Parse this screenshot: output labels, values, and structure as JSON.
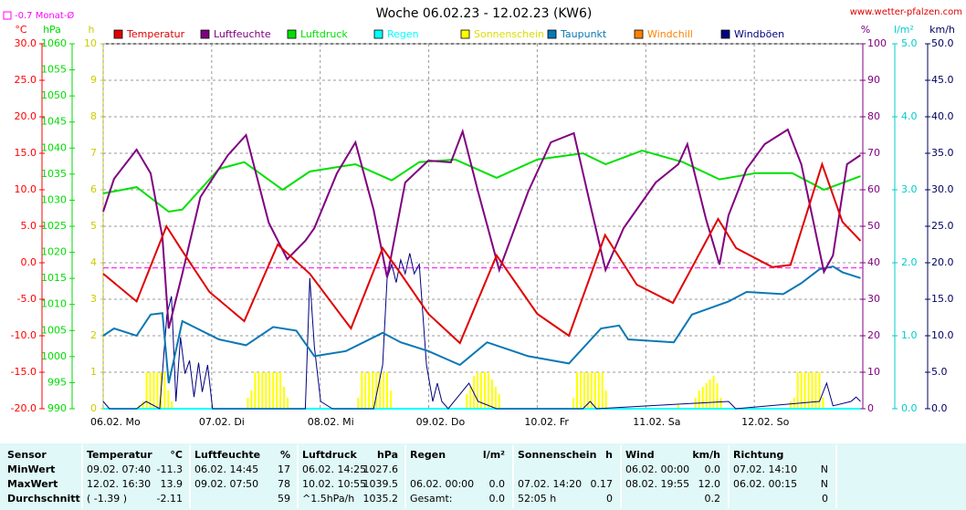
{
  "chart_data": {
    "type": "line",
    "title": "Woche 06.02.23 - 12.02.23 (KW6)",
    "source": "www.wetter-pfalzen.com",
    "reference": {
      "label": "-0.7 Monat-Ø",
      "value": -0.7,
      "color": "#ff00ff"
    },
    "xlim": [
      0,
      168
    ],
    "xticks": [
      {
        "value": 0,
        "label": "06.02. Mo"
      },
      {
        "value": 24,
        "label": "07.02. Di"
      },
      {
        "value": 48,
        "label": "08.02. Mi"
      },
      {
        "value": 72,
        "label": "09.02. Do"
      },
      {
        "value": 96,
        "label": "10.02. Fr"
      },
      {
        "value": 120,
        "label": "11.02. Sa"
      },
      {
        "value": 144,
        "label": "12.02. So"
      }
    ],
    "grid": true,
    "y_axes": [
      {
        "unit": "°C",
        "color": "#ff0000",
        "lim": [
          -20,
          30
        ],
        "ticks": [
          {
            "value": 30,
            "label": "30.0"
          },
          {
            "value": 25,
            "label": "25.0"
          },
          {
            "value": 20,
            "label": "20.0"
          },
          {
            "value": 15,
            "label": "15.0"
          },
          {
            "value": 10,
            "label": "10.0"
          },
          {
            "value": 5,
            "label": "5.0"
          },
          {
            "value": 0,
            "label": "0.0"
          },
          {
            "value": -5,
            "label": "-5.0"
          },
          {
            "value": -10,
            "label": "-10.0"
          },
          {
            "value": -15,
            "label": "-15.0"
          },
          {
            "value": -20,
            "label": "-20.0"
          }
        ]
      },
      {
        "unit": "hPa",
        "color": "#00dd00",
        "lim": [
          990,
          1060
        ],
        "ticks": [
          990,
          995,
          1000,
          1005,
          1010,
          1015,
          1020,
          1025,
          1030,
          1035,
          1040,
          1045,
          1050,
          1055,
          1060
        ]
      },
      {
        "unit": "h",
        "color": "#cccc00",
        "lim": [
          0,
          10
        ],
        "ticks": [
          0,
          1,
          2,
          3,
          4,
          5,
          6,
          7,
          8,
          9,
          10
        ]
      },
      {
        "unit": "%",
        "color": "#800080",
        "lim": [
          0,
          100
        ],
        "ticks": [
          0,
          10,
          20,
          30,
          40,
          50,
          60,
          70,
          80,
          90,
          100
        ]
      },
      {
        "unit": "l/m²",
        "color": "#00cccc",
        "lim": [
          0,
          5
        ],
        "ticks": [
          {
            "value": 0,
            "label": "0.0"
          },
          {
            "value": 1,
            "label": "1.0"
          },
          {
            "value": 2,
            "label": "2.0"
          },
          {
            "value": 3,
            "label": "3.0"
          },
          {
            "value": 4,
            "label": "4.0"
          },
          {
            "value": 5,
            "label": "5.0"
          }
        ]
      },
      {
        "unit": "km/h",
        "color": "#000060",
        "lim": [
          0,
          50
        ],
        "ticks": [
          {
            "value": 0,
            "label": "0.0"
          },
          {
            "value": 5,
            "label": "5.0"
          },
          {
            "value": 10,
            "label": "10.0"
          },
          {
            "value": 15,
            "label": "15.0"
          },
          {
            "value": 20,
            "label": "20.0"
          },
          {
            "value": 25,
            "label": "25.0"
          },
          {
            "value": 30,
            "label": "30.0"
          },
          {
            "value": 35,
            "label": "35.0"
          },
          {
            "value": 40,
            "label": "40.0"
          },
          {
            "value": 45,
            "label": "45.0"
          },
          {
            "value": 50,
            "label": "50.0"
          }
        ]
      }
    ],
    "series": [
      {
        "name": "Temperatur",
        "color": "#e00000",
        "kind": "line",
        "axis": 0,
        "x": [
          0,
          7.4,
          14,
          17.5,
          23.5,
          31.2,
          38.6,
          45.7,
          54.8,
          61.8,
          65.8,
          71.9,
          78.9,
          87,
          96,
          103,
          111,
          118,
          126,
          136,
          140,
          148,
          152,
          159,
          163.5,
          167.5
        ],
        "values": [
          -1.5,
          -5.3,
          5,
          1.6,
          -4,
          -8,
          2.5,
          -1.5,
          -9,
          2,
          -1.5,
          -7,
          -11,
          1,
          -7,
          -10,
          3.8,
          -3,
          -5.5,
          6,
          2,
          -0.6,
          -0.3,
          13.5,
          5.6,
          3
        ]
      },
      {
        "name": "Luftfeuchte",
        "color": "#800080",
        "kind": "line",
        "axis": 3,
        "x": [
          0,
          2.4,
          7.4,
          10.5,
          13.1,
          14.5,
          17.5,
          21.5,
          27.6,
          31.6,
          36.6,
          40.7,
          44.7,
          46.7,
          51.7,
          55.8,
          59.8,
          62.8,
          66.8,
          71.9,
          76.9,
          79.5,
          82.9,
          87.6,
          94,
          99,
          104.1,
          107.7,
          111.1,
          115.1,
          122.2,
          127.2,
          129.2,
          133.3,
          136.3,
          138.3,
          142.3,
          146.3,
          151.4,
          154.4,
          159.4,
          161.4,
          164.5,
          167.5
        ],
        "values": [
          54,
          63,
          71,
          64.5,
          47,
          22,
          37,
          58,
          69.5,
          75,
          51,
          41,
          46,
          49.5,
          64.5,
          73,
          54.5,
          36,
          62,
          68,
          67.5,
          76,
          59.5,
          38,
          59.5,
          73,
          75.5,
          56,
          38,
          49.5,
          62,
          67,
          72.5,
          52,
          39.5,
          53,
          65.7,
          72.5,
          76.5,
          67,
          37.5,
          42,
          67,
          69.5
        ]
      },
      {
        "name": "Luftdruck",
        "color": "#00e000",
        "kind": "line",
        "axis": 1,
        "x": [
          0,
          7.4,
          14.5,
          17.5,
          25.6,
          31.2,
          39.7,
          45.7,
          55.8,
          63.8,
          69.9,
          77.9,
          87,
          96,
          106.1,
          111.1,
          119.2,
          128.2,
          136.3,
          144.4,
          152.4,
          159.4,
          167.5
        ],
        "values": [
          1031.3,
          1032.5,
          1027.8,
          1028.2,
          1036,
          1037.3,
          1032,
          1035.5,
          1036.9,
          1033.8,
          1037.3,
          1037.8,
          1034.3,
          1037.8,
          1039,
          1036.9,
          1039.5,
          1037.3,
          1034,
          1035.2,
          1035.2,
          1032,
          1034.6
        ]
      },
      {
        "name": "Regen",
        "color": "#00ffff",
        "kind": "line",
        "axis": 4,
        "x": [
          0,
          167.5
        ],
        "values": [
          0,
          0
        ]
      },
      {
        "name": "Sonnenschein",
        "color": "#ffff00",
        "kind": "bar",
        "axis": 2,
        "x": [
          8,
          8.8,
          9.6,
          10.4,
          11.2,
          12,
          12.8,
          13.6,
          14.4,
          15.2,
          32,
          32.8,
          33.6,
          34.4,
          35.2,
          36,
          36.8,
          37.6,
          38.4,
          39.2,
          40,
          40.8,
          56.4,
          57.2,
          58,
          58.8,
          59.6,
          60.4,
          61.2,
          62,
          62.8,
          63.6,
          80.4,
          81.2,
          82,
          82.8,
          83.6,
          84.4,
          85.2,
          86,
          86.8,
          87.6,
          104,
          104.8,
          105.6,
          106.4,
          107.2,
          108,
          108.8,
          109.6,
          110.4,
          111.2,
          127.2,
          131,
          131.8,
          132.6,
          133.4,
          134.2,
          135,
          135.8,
          136.6,
          152,
          152.8,
          153.6,
          154.4,
          155.2,
          156,
          156.8,
          157.6,
          158.4,
          159.2
        ],
        "values": [
          0.1,
          0.2,
          1,
          1,
          1,
          1,
          1,
          1,
          0.5,
          0.2,
          0.3,
          0.5,
          1,
          1,
          1,
          1,
          1,
          1,
          1,
          1,
          0.6,
          0.3,
          0.3,
          1,
          1,
          1,
          1,
          1,
          1,
          1,
          1,
          0.5,
          0.4,
          0.6,
          0.9,
          1,
          1,
          1,
          1,
          0.8,
          0.6,
          0.4,
          0.3,
          1,
          1,
          1,
          1,
          1,
          1,
          1,
          1,
          0.5,
          0.1,
          0.3,
          0.5,
          0.6,
          0.7,
          0.8,
          0.9,
          0.7,
          0.3,
          0.2,
          0.3,
          1,
          1,
          1,
          1,
          1,
          1,
          1,
          0.3
        ]
      },
      {
        "name": "Taupunkt",
        "color": "#0a78b4",
        "kind": "line",
        "axis": 0,
        "x": [
          0,
          2.4,
          7.4,
          10.5,
          13.1,
          14.5,
          17.5,
          25.6,
          31.6,
          37.6,
          42.7,
          46.7,
          53.7,
          61.8,
          65.8,
          71.9,
          78.9,
          84.9,
          94,
          103,
          110.1,
          114.1,
          116.1,
          126.2,
          130.2,
          138.3,
          142.3,
          150.4,
          154.4,
          158.4,
          161.4,
          163.5,
          167.5
        ],
        "values": [
          -10,
          -9,
          -10,
          -7.1,
          -6.9,
          -16.5,
          -8,
          -10.5,
          -11.3,
          -8.8,
          -9.3,
          -12.8,
          -12.1,
          -9.6,
          -10.9,
          -12.1,
          -14,
          -10.9,
          -12.8,
          -13.8,
          -9,
          -8.6,
          -10.5,
          -10.9,
          -7.1,
          -5.3,
          -4,
          -4.3,
          -2.8,
          -0.9,
          -0.5,
          -1.3,
          -2.1
        ]
      },
      {
        "name": "Windchill",
        "color": "#ff8000",
        "kind": "line",
        "axis": 0,
        "x": [],
        "values": []
      },
      {
        "name": "Windböen",
        "color": "#000080",
        "kind": "line",
        "axis": 5,
        "x": [
          0,
          1.4,
          7.4,
          9.5,
          12.5,
          14.1,
          15.1,
          16.1,
          17.1,
          18.1,
          19.1,
          20.1,
          21.1,
          21.9,
          23.1,
          24.2,
          33.6,
          44.7,
          45.7,
          46.7,
          48.1,
          50.7,
          59.8,
          61.8,
          62.8,
          63.8,
          64.8,
          65.8,
          66.8,
          67.8,
          68.8,
          69.9,
          71.5,
          72.9,
          73.9,
          74.9,
          76.3,
          80.9,
          82.9,
          87,
          106.1,
          107.7,
          109.1,
          138.3,
          139.9,
          158.4,
          160,
          161.4,
          165.4,
          166.5,
          167.5
        ],
        "values": [
          1,
          0,
          0,
          1,
          0,
          12.9,
          15.4,
          1,
          9.8,
          4.8,
          6.6,
          1.6,
          6.3,
          2.3,
          6,
          0,
          0,
          0,
          17.9,
          8.5,
          1,
          0,
          0,
          6,
          17.9,
          19.8,
          17.3,
          20.4,
          18.5,
          21.3,
          18.5,
          19.8,
          6,
          1,
          3.5,
          1,
          0,
          3.5,
          1,
          0,
          0,
          1,
          0,
          1,
          0,
          1,
          3.5,
          0.4,
          1,
          1.6,
          1
        ]
      }
    ]
  },
  "table": {
    "columns": [
      {
        "name": "Sensor"
      },
      {
        "name": "Temperatur",
        "unit": "°C"
      },
      {
        "name": "Luftfeuchte",
        "unit": "%"
      },
      {
        "name": "Luftdruck",
        "unit": "hPa"
      },
      {
        "name": "Regen",
        "unit": "l/m²"
      },
      {
        "name": "Sonnenschein",
        "unit": "h"
      },
      {
        "name": "Wind",
        "unit": "km/h"
      },
      {
        "name": "Richtung"
      }
    ],
    "rows": [
      {
        "label": "MinWert",
        "cells": [
          [
            "09.02.  07:40",
            "-11.3"
          ],
          [
            "06.02.  14:45",
            "17"
          ],
          [
            "06.02.  14:25",
            "1027.6"
          ],
          [
            null,
            null
          ],
          [
            null,
            null
          ],
          [
            "06.02.  00:00",
            "0.0"
          ],
          [
            "07.02.  14:10",
            "N"
          ]
        ]
      },
      {
        "label": "MaxWert",
        "cells": [
          [
            "12.02.  16:30",
            "13.9"
          ],
          [
            "09.02.  07:50",
            "78"
          ],
          [
            "10.02.  10:55",
            "1039.5"
          ],
          [
            "06.02.  00:00",
            "0.0"
          ],
          [
            "07.02.  14:20",
            "0.17"
          ],
          [
            "08.02.  19:55",
            "12.0"
          ],
          [
            "06.02.  00:15",
            "N"
          ]
        ]
      },
      {
        "label": "Durchschnitt",
        "cells": [
          [
            "( -1.39 )",
            "-2.11"
          ],
          [
            null,
            "59"
          ],
          [
            "^1.5hPa/h",
            "1035.2"
          ],
          [
            "Gesamt:",
            "0.0"
          ],
          [
            "52:05 h",
            "0"
          ],
          [
            null,
            "0.2"
          ],
          [
            null,
            "0"
          ]
        ]
      }
    ]
  }
}
